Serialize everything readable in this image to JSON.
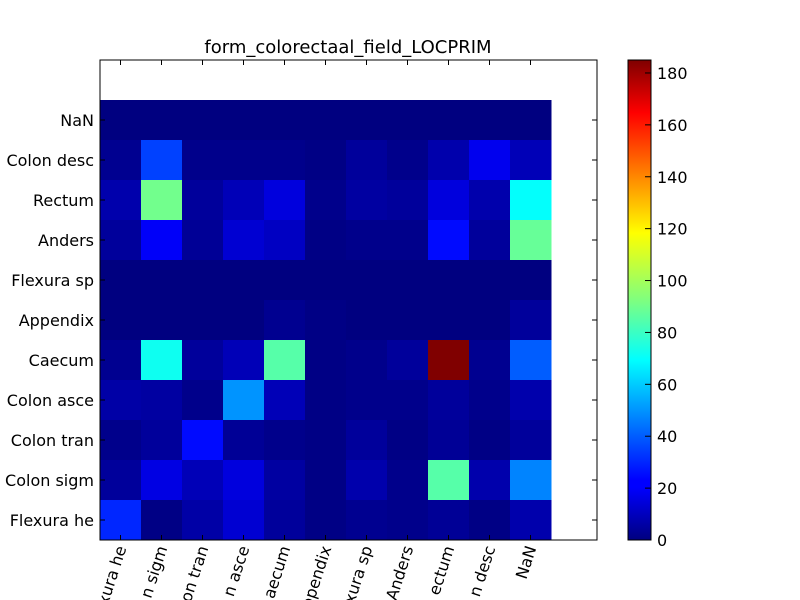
{
  "chart_data": {
    "type": "heatmap",
    "title": "form_colorectaal_field_LOCPRIM",
    "x_labels": [
      "Flexura he",
      "Colon sigm",
      "Colon tran",
      "Colon asce",
      "Caecum",
      "Appendix",
      "Flexura sp",
      "Anders",
      "Rectum",
      "Colon desc",
      "NaN"
    ],
    "x_tick_text": [
      "xura he",
      "n sigm",
      "on tran",
      "n asce",
      "aecum",
      "ppendix",
      "xura sp",
      "Anders",
      "ectum",
      "n desc",
      "NaN"
    ],
    "y_labels": [
      "NaN",
      "Colon desc",
      "Rectum",
      "Anders",
      "Flexura sp",
      "Appendix",
      "Caecum",
      "Colon asce",
      "Colon tran",
      "Colon sigm",
      "Flexura he"
    ],
    "matrix": [
      [
        0,
        0,
        0,
        0,
        0,
        0,
        0,
        0,
        0,
        0,
        0
      ],
      [
        3,
        35,
        2,
        2,
        2,
        1,
        5,
        2,
        8,
        20,
        10
      ],
      [
        8,
        90,
        5,
        10,
        17,
        2,
        6,
        5,
        17,
        8,
        70
      ],
      [
        5,
        22,
        4,
        15,
        12,
        1,
        2,
        2,
        25,
        5,
        88
      ],
      [
        0,
        0,
        0,
        0,
        0,
        0,
        0,
        0,
        0,
        0,
        0
      ],
      [
        0,
        0,
        0,
        0,
        3,
        1,
        0,
        0,
        0,
        0,
        5
      ],
      [
        3,
        72,
        5,
        10,
        85,
        1,
        2,
        5,
        185,
        3,
        40
      ],
      [
        7,
        6,
        2,
        50,
        10,
        1,
        2,
        2,
        5,
        2,
        8
      ],
      [
        2,
        5,
        25,
        4,
        2,
        1,
        5,
        1,
        4,
        1,
        5
      ],
      [
        5,
        18,
        10,
        17,
        6,
        1,
        8,
        2,
        85,
        8,
        47
      ],
      [
        30,
        1,
        7,
        15,
        5,
        1,
        3,
        2,
        4,
        1,
        8
      ]
    ],
    "colorbar": {
      "min": 0,
      "max": 185,
      "ticks": [
        0,
        20,
        40,
        60,
        80,
        100,
        120,
        140,
        160,
        180
      ],
      "colormap": "jet"
    },
    "grid": false,
    "legend": "colorbar-right"
  }
}
